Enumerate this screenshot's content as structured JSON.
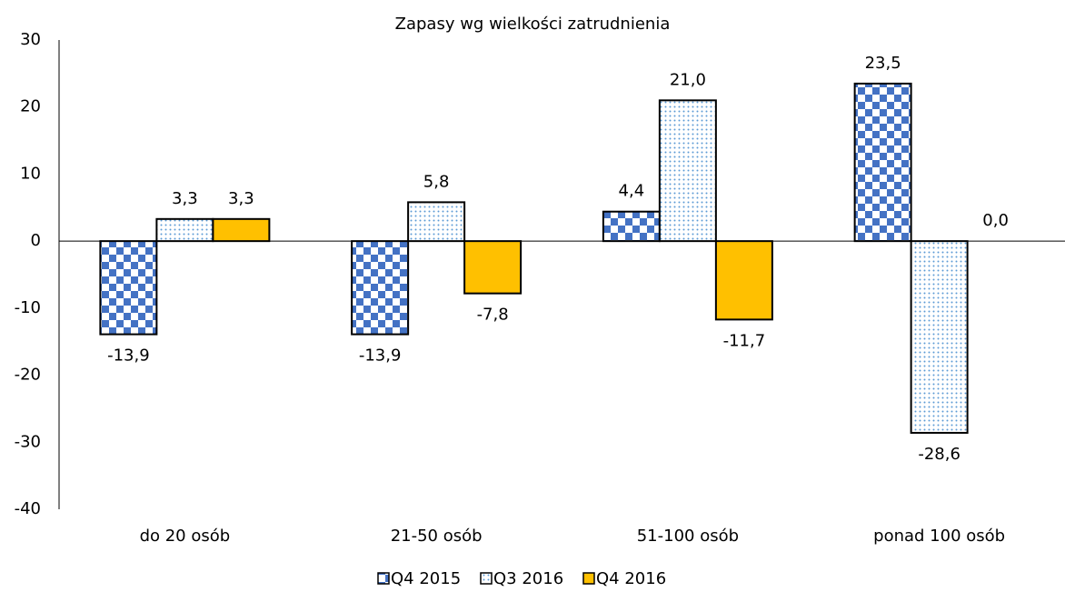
{
  "chart_data": {
    "type": "bar",
    "title": "Zapasy wg wielkości zatrudnienia",
    "categories": [
      "do 20 osób",
      "21-50 osób",
      "51-100 osób",
      "ponad 100 osób"
    ],
    "series": [
      {
        "name": "Q4 2015",
        "color": "#4472c4",
        "pattern": "checker",
        "values": [
          -13.9,
          -13.9,
          4.4,
          23.5
        ],
        "value_labels": [
          "-13,9",
          "-13,9",
          "4,4",
          "23,5"
        ]
      },
      {
        "name": "Q3 2016",
        "color": "#5b9bd5",
        "pattern": "dots",
        "values": [
          3.3,
          5.8,
          21.0,
          -28.6
        ],
        "value_labels": [
          "3,3",
          "5,8",
          "21,0",
          "-28,6"
        ]
      },
      {
        "name": "Q4 2016",
        "color": "#ffc000",
        "pattern": "solid",
        "values": [
          3.3,
          -7.8,
          -11.7,
          0.0
        ],
        "value_labels": [
          "3,3",
          "-7,8",
          "-11,7",
          "0,0"
        ]
      }
    ],
    "ylim": [
      -40,
      30
    ],
    "yticks": [
      -40,
      -30,
      -20,
      -10,
      0,
      10,
      20,
      30
    ],
    "grid": false,
    "legend": "bottom"
  }
}
